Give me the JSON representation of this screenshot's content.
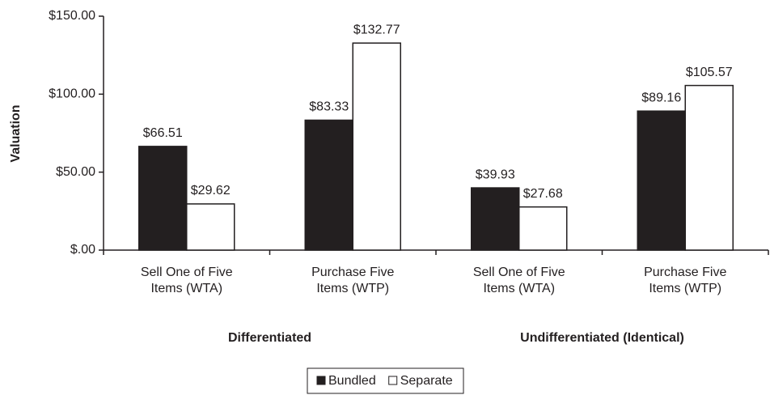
{
  "chart_data": {
    "type": "bar",
    "y_label": "Valuation",
    "categories": [
      "Sell One of Five\nItems (WTA)",
      "Purchase Five\nItems (WTP)",
      "Sell One of Five\nItems (WTA)",
      "Purchase Five\nItems (WTP)"
    ],
    "groups": [
      "Differentiated",
      "Undifferentiated (Identical)"
    ],
    "series": [
      {
        "name": "Bundled",
        "color": "#231f20",
        "values": [
          66.51,
          83.33,
          39.93,
          89.16
        ],
        "value_labels": [
          "$66.51",
          "$83.33",
          "$39.93",
          "$89.16"
        ]
      },
      {
        "name": "Separate",
        "color": "#ffffff",
        "values": [
          29.62,
          132.77,
          27.68,
          105.57
        ],
        "value_labels": [
          "$29.62",
          "$132.77",
          "$27.68",
          "$105.57"
        ]
      }
    ],
    "ylim": [
      0,
      150
    ],
    "yticks": [
      {
        "value": 0,
        "label": "$.00"
      },
      {
        "value": 50,
        "label": "$50.00"
      },
      {
        "value": 100,
        "label": "$100.00"
      },
      {
        "value": 150,
        "label": "$150.00"
      }
    ],
    "legend": "bottom"
  }
}
